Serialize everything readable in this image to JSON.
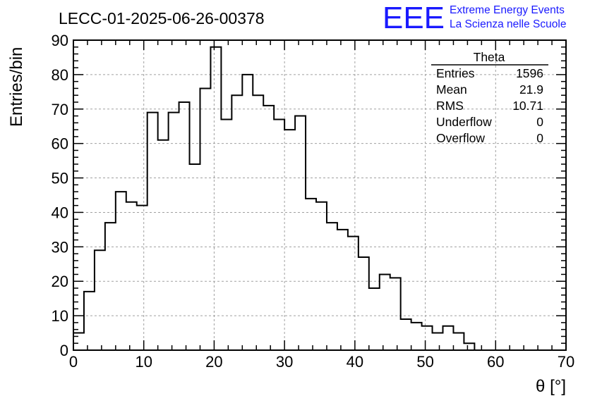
{
  "chart_data": {
    "type": "histogram",
    "title": "LECC-01-2025-06-26-00378",
    "xlabel": "θ [°]",
    "ylabel": "Entries/bin",
    "xlim": [
      0,
      70
    ],
    "ylim": [
      0,
      90
    ],
    "grid": true,
    "bin_width": 1.5,
    "x_ticks": [
      0,
      10,
      20,
      30,
      40,
      50,
      60,
      70
    ],
    "y_ticks": [
      0,
      10,
      20,
      30,
      40,
      50,
      60,
      70,
      80,
      90
    ],
    "values": [
      5,
      17,
      29,
      37,
      46,
      43,
      42,
      69,
      61,
      69,
      72,
      54,
      76,
      88,
      67,
      74,
      80,
      74,
      71,
      67,
      64,
      68,
      44,
      43,
      37,
      35,
      33,
      27,
      18,
      22,
      21,
      9,
      8,
      7,
      5,
      7,
      5,
      2,
      0,
      0,
      0,
      0,
      0,
      0,
      0,
      0
    ],
    "stats_box": {
      "title": "Theta",
      "rows": [
        {
          "label": "Entries",
          "value": "1596"
        },
        {
          "label": "Mean",
          "value": "21.9"
        },
        {
          "label": "RMS",
          "value": "10.71"
        },
        {
          "label": "Underflow",
          "value": "0"
        },
        {
          "label": "Overflow",
          "value": "0"
        }
      ]
    }
  },
  "logo": {
    "mark": "EEE",
    "line1": "Extreme Energy Events",
    "line2": "La Scienza nelle Scuole",
    "color": "#1a1aff"
  }
}
